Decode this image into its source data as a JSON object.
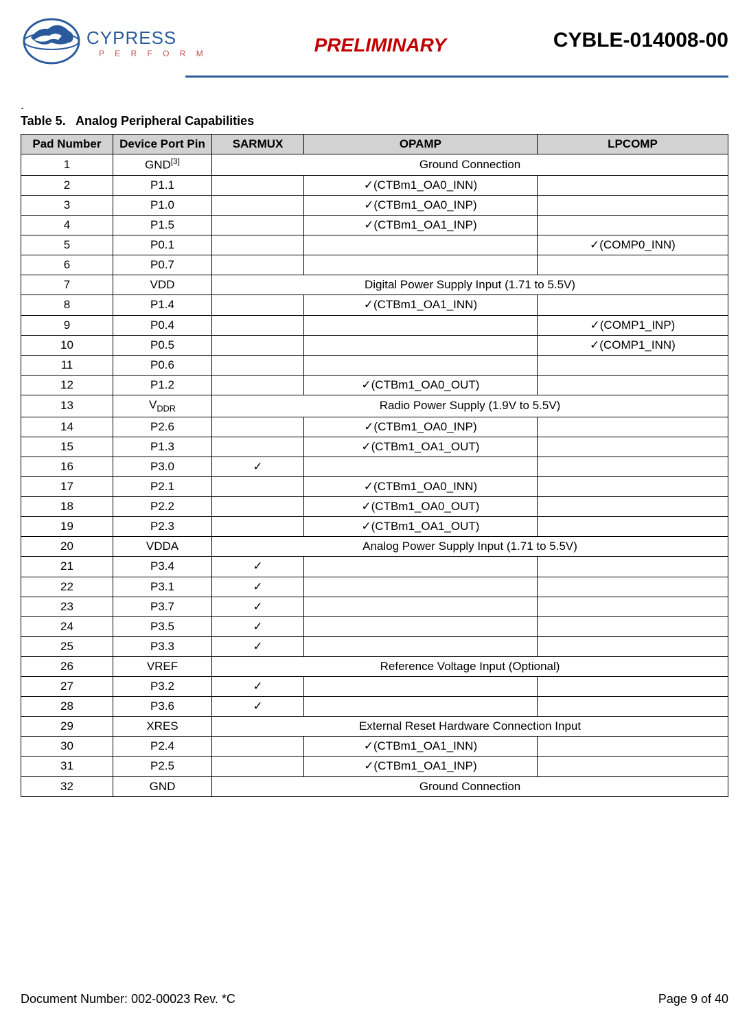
{
  "header": {
    "logo_name": "CYPRESS",
    "logo_sub": "P E R F O R M",
    "center": "PRELIMINARY",
    "right": "CYBLE-014008-00"
  },
  "table": {
    "caption_prefix": "Table 5.",
    "caption": "Analog Peripheral Capabilities",
    "columns": [
      "Pad Number",
      "Device Port Pin",
      "SARMUX",
      "OPAMP",
      "LPCOMP"
    ],
    "rows": [
      {
        "pad": "1",
        "pin": "GND",
        "pin_sup": "[3]",
        "span": "Ground Connection"
      },
      {
        "pad": "2",
        "pin": "P1.1",
        "sar": "",
        "op": "✓(CTBm1_OA0_INN)",
        "lp": ""
      },
      {
        "pad": "3",
        "pin": "P1.0",
        "sar": "",
        "op": "✓(CTBm1_OA0_INP)",
        "lp": ""
      },
      {
        "pad": "4",
        "pin": "P1.5",
        "sar": "",
        "op": "✓(CTBm1_OA1_INP)",
        "lp": ""
      },
      {
        "pad": "5",
        "pin": "P0.1",
        "sar": "",
        "op": "",
        "lp": "✓(COMP0_INN)"
      },
      {
        "pad": "6",
        "pin": "P0.7",
        "sar": "",
        "op": "",
        "lp": ""
      },
      {
        "pad": "7",
        "pin": "VDD",
        "span": "Digital Power Supply Input (1.71 to 5.5V)"
      },
      {
        "pad": "8",
        "pin": "P1.4",
        "sar": "",
        "op": "✓(CTBm1_OA1_INN)",
        "lp": ""
      },
      {
        "pad": "9",
        "pin": "P0.4",
        "sar": "",
        "op": "",
        "lp": "✓(COMP1_INP)"
      },
      {
        "pad": "10",
        "pin": "P0.5",
        "sar": "",
        "op": "",
        "lp": "✓(COMP1_INN)"
      },
      {
        "pad": "11",
        "pin": "P0.6",
        "sar": "",
        "op": "",
        "lp": ""
      },
      {
        "pad": "12",
        "pin": "P1.2",
        "sar": "",
        "op": "✓(CTBm1_OA0_OUT)",
        "lp": ""
      },
      {
        "pad": "13",
        "pin": "V",
        "pin_sub": "DDR",
        "span": "Radio Power Supply (1.9V to 5.5V)"
      },
      {
        "pad": "14",
        "pin": "P2.6",
        "sar": "",
        "op": "✓(CTBm1_OA0_INP)",
        "lp": ""
      },
      {
        "pad": "15",
        "pin": "P1.3",
        "sar": "",
        "op": "✓(CTBm1_OA1_OUT)",
        "lp": ""
      },
      {
        "pad": "16",
        "pin": "P3.0",
        "sar": "✓",
        "op": "",
        "lp": ""
      },
      {
        "pad": "17",
        "pin": "P2.1",
        "sar": "",
        "op": "✓(CTBm1_OA0_INN)",
        "lp": ""
      },
      {
        "pad": "18",
        "pin": "P2.2",
        "sar": "",
        "op": "✓(CTBm1_OA0_OUT)",
        "lp": ""
      },
      {
        "pad": "19",
        "pin": "P2.3",
        "sar": "",
        "op": "✓(CTBm1_OA1_OUT)",
        "lp": ""
      },
      {
        "pad": "20",
        "pin": "VDDA",
        "span": "Analog Power Supply Input (1.71 to 5.5V)"
      },
      {
        "pad": "21",
        "pin": "P3.4",
        "sar": "✓",
        "op": "",
        "lp": ""
      },
      {
        "pad": "22",
        "pin": "P3.1",
        "sar": "✓",
        "op": "",
        "lp": ""
      },
      {
        "pad": "23",
        "pin": "P3.7",
        "sar": "✓",
        "op": "",
        "lp": ""
      },
      {
        "pad": "24",
        "pin": "P3.5",
        "sar": "✓",
        "op": "",
        "lp": ""
      },
      {
        "pad": "25",
        "pin": "P3.3",
        "sar": "✓",
        "op": "",
        "lp": ""
      },
      {
        "pad": "26",
        "pin": "VREF",
        "span": "Reference Voltage Input (Optional)"
      },
      {
        "pad": "27",
        "pin": "P3.2",
        "sar": "✓",
        "op": "",
        "lp": ""
      },
      {
        "pad": "28",
        "pin": "P3.6",
        "sar": "✓",
        "op": "",
        "lp": ""
      },
      {
        "pad": "29",
        "pin": "XRES",
        "span": "External Reset Hardware Connection Input"
      },
      {
        "pad": "30",
        "pin": "P2.4",
        "sar": "",
        "op": "✓(CTBm1_OA1_INN)",
        "lp": ""
      },
      {
        "pad": "31",
        "pin": "P2.5",
        "sar": "",
        "op": "✓(CTBm1_OA1_INP)",
        "lp": ""
      },
      {
        "pad": "32",
        "pin": "GND",
        "span": "Ground Connection"
      }
    ]
  },
  "footer": {
    "doc": "Document Number: 002-00023 Rev. *C",
    "page": "Page 9 of 40"
  }
}
